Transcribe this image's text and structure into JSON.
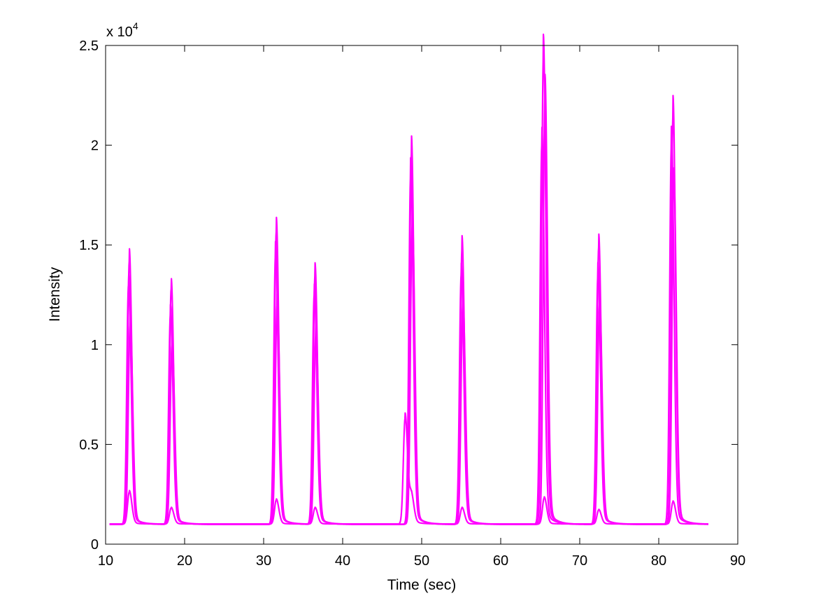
{
  "chart_data": {
    "type": "line",
    "title": "",
    "xlabel": "Time (sec)",
    "ylabel": "Intensity",
    "xlim": [
      10,
      90
    ],
    "ylim": [
      0,
      25000
    ],
    "x_ticks": [
      "10",
      "20",
      "30",
      "40",
      "50",
      "60",
      "70",
      "80",
      "90"
    ],
    "y_ticks": [
      "0",
      "0.5",
      "1",
      "1.5",
      "2",
      "2.5"
    ],
    "y_multiplier": {
      "base": "x 10",
      "exponent": "4"
    },
    "grid": false,
    "legend": "none",
    "line_color": "#ff00ff",
    "x_range": [
      10.5,
      86.3
    ],
    "baseline": 1000,
    "series": [
      {
        "peaks": [
          {
            "t": 13.0,
            "h": 14200
          },
          {
            "t": 18.3,
            "h": 12800
          },
          {
            "t": 31.6,
            "h": 15700
          },
          {
            "t": 36.5,
            "h": 13500
          },
          {
            "t": 48.7,
            "h": 19600
          },
          {
            "t": 55.1,
            "h": 14800
          },
          {
            "t": 65.4,
            "h": 24400
          },
          {
            "t": 72.4,
            "h": 14900
          },
          {
            "t": 81.8,
            "h": 21500
          }
        ]
      },
      {
        "peaks": [
          {
            "t": 12.9,
            "h": 13000
          },
          {
            "t": 18.2,
            "h": 11500
          },
          {
            "t": 31.5,
            "h": 14500
          },
          {
            "t": 36.4,
            "h": 12500
          },
          {
            "t": 48.6,
            "h": 18500
          },
          {
            "t": 55.0,
            "h": 13500
          },
          {
            "t": 65.6,
            "h": 22500
          },
          {
            "t": 72.3,
            "h": 13500
          },
          {
            "t": 81.6,
            "h": 20000
          }
        ]
      },
      {
        "peaks": [
          {
            "t": 13.1,
            "h": 11000
          },
          {
            "t": 18.4,
            "h": 10000
          },
          {
            "t": 31.7,
            "h": 12000
          },
          {
            "t": 36.6,
            "h": 10500
          },
          {
            "t": 48.8,
            "h": 16000
          },
          {
            "t": 55.2,
            "h": 12000
          },
          {
            "t": 65.2,
            "h": 20000
          },
          {
            "t": 72.5,
            "h": 12000
          },
          {
            "t": 81.9,
            "h": 18000
          }
        ]
      },
      {
        "peaks": [
          {
            "t": 13.0,
            "h": 2600
          },
          {
            "t": 18.3,
            "h": 1800
          },
          {
            "t": 31.6,
            "h": 2200
          },
          {
            "t": 36.5,
            "h": 1800
          },
          {
            "t": 47.9,
            "h": 6300
          },
          {
            "t": 48.7,
            "h": 2300
          },
          {
            "t": 55.1,
            "h": 1800
          },
          {
            "t": 65.5,
            "h": 2300
          },
          {
            "t": 72.4,
            "h": 1700
          },
          {
            "t": 81.8,
            "h": 2100
          }
        ]
      }
    ]
  }
}
